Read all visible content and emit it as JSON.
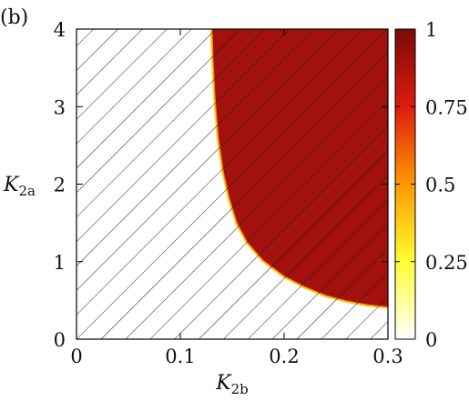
{
  "panel_label": "(b)",
  "chart_data": {
    "type": "heatmap",
    "xlabel": "K",
    "xlabel_sub": "2b",
    "ylabel": "K",
    "ylabel_sub": "2a",
    "xlim": [
      0,
      0.3
    ],
    "ylim": [
      0,
      4
    ],
    "xticks": [
      {
        "value": 0,
        "label": "0"
      },
      {
        "value": 0.1,
        "label": "0.1"
      },
      {
        "value": 0.2,
        "label": "0.2"
      },
      {
        "value": 0.3,
        "label": "0.3"
      }
    ],
    "yticks": [
      {
        "value": 0,
        "label": "0"
      },
      {
        "value": 1,
        "label": "1"
      },
      {
        "value": 2,
        "label": "2"
      },
      {
        "value": 3,
        "label": "3"
      },
      {
        "value": 4,
        "label": "4"
      }
    ],
    "region_value": 0.9,
    "boundary": [
      {
        "x": 0.3,
        "y": 0.42
      },
      {
        "x": 0.28,
        "y": 0.45
      },
      {
        "x": 0.26,
        "y": 0.5
      },
      {
        "x": 0.24,
        "y": 0.57
      },
      {
        "x": 0.22,
        "y": 0.68
      },
      {
        "x": 0.2,
        "y": 0.82
      },
      {
        "x": 0.18,
        "y": 1.02
      },
      {
        "x": 0.165,
        "y": 1.25
      },
      {
        "x": 0.155,
        "y": 1.5
      },
      {
        "x": 0.148,
        "y": 1.8
      },
      {
        "x": 0.142,
        "y": 2.15
      },
      {
        "x": 0.137,
        "y": 2.6
      },
      {
        "x": 0.134,
        "y": 3.1
      },
      {
        "x": 0.132,
        "y": 3.6
      },
      {
        "x": 0.131,
        "y": 4.0
      }
    ],
    "hatch": "diagonal lines over entire plot area",
    "colorbar": {
      "range": [
        0,
        1
      ],
      "ticks": [
        {
          "value": 0,
          "label": "0"
        },
        {
          "value": 0.25,
          "label": "0.25"
        },
        {
          "value": 0.5,
          "label": "0.5"
        },
        {
          "value": 0.75,
          "label": "0.75"
        },
        {
          "value": 1,
          "label": "1"
        }
      ],
      "colors": [
        "#ffffff",
        "#ffff33",
        "#ff9900",
        "#dd1c0e",
        "#7a0a0a"
      ]
    },
    "grid": false
  }
}
